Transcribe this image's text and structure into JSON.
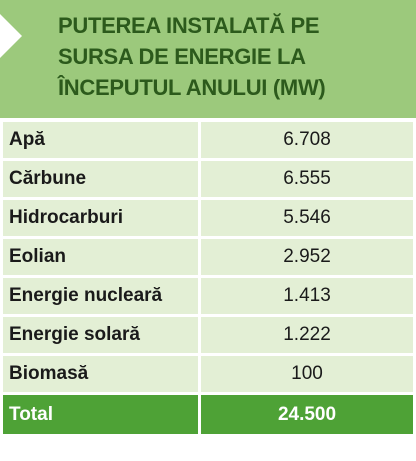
{
  "header": {
    "title": [
      "PUTEREA INSTALATĂ PE",
      "SURSA DE ENERGIE LA",
      "ÎNCEPUTUL ANULUI (MW)"
    ]
  },
  "table": {
    "rows": [
      [
        "Apă",
        "6.708"
      ],
      [
        "Cărbune",
        "6.555"
      ],
      [
        "Hidrocarburi",
        "5.546"
      ],
      [
        "Eolian",
        "2.952"
      ],
      [
        "Energie nucleară",
        "1.413"
      ],
      [
        "Energie solară",
        "1.222"
      ],
      [
        "Biomasă",
        "100"
      ]
    ],
    "total": [
      "Total",
      "24.500"
    ]
  }
}
